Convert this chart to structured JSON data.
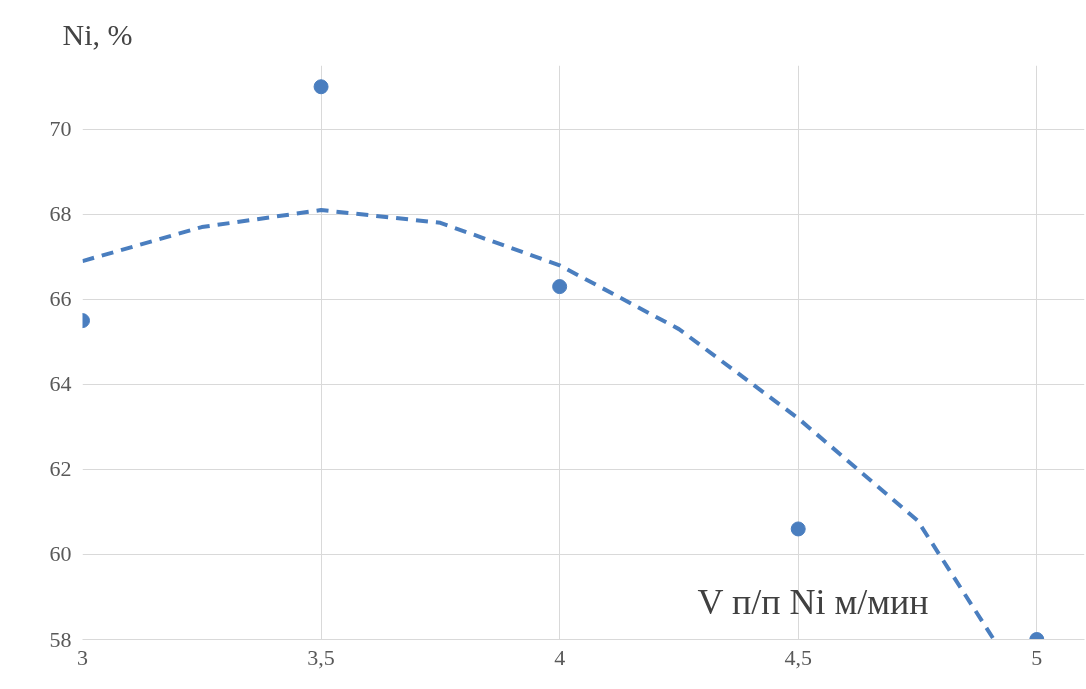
{
  "chart_data": {
    "type": "scatter",
    "title": "Ni, %",
    "xlabel": "V п/п Ni м/мин",
    "x": [
      3,
      3.5,
      4,
      4.5,
      5
    ],
    "series": [
      {
        "color": "#4a7ebf",
        "values": [
          65.5,
          71.0,
          66.3,
          60.6,
          58.0
        ],
        "marker": "circle"
      },
      {
        "type": "line",
        "color": "#4a7ebf",
        "x": [
          3,
          3.25,
          3.5,
          3.75,
          4,
          4.25,
          4.5,
          4.75,
          4.91
        ],
        "values": [
          66.9,
          67.7,
          68.1,
          67.8,
          66.8,
          65.3,
          63.2,
          60.8,
          58.0
        ],
        "line_style": "dashed",
        "marker": "none"
      }
    ],
    "xlim": [
      3,
      5.1
    ],
    "xticks": [
      3,
      {
        "value": 3.5,
        "label": "3,5"
      },
      4,
      {
        "value": 4.5,
        "label": "4,5"
      },
      5
    ],
    "ylim": [
      58,
      71.5
    ],
    "yticks": [
      58,
      60,
      62,
      64,
      66,
      68,
      70
    ],
    "grid": true
  }
}
